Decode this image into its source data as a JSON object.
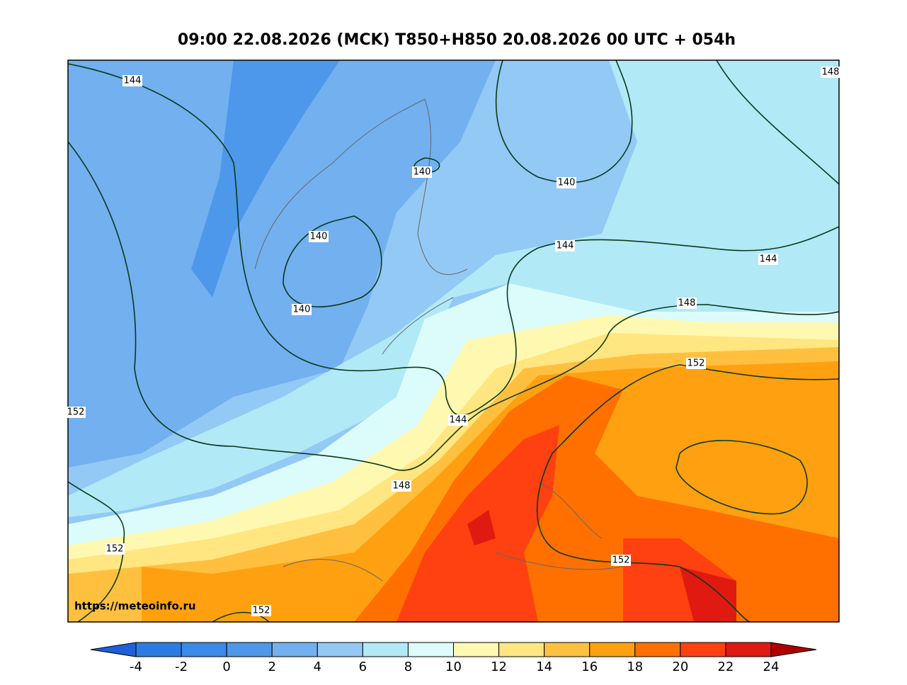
{
  "title": "09:00 22.08.2026 (MCK) T850+H850 20.08.2026 00 UTC + 054h",
  "watermark": "https://meteoinfo.ru",
  "contour_labels": [
    "144",
    "148",
    "140",
    "140",
    "140",
    "140",
    "144",
    "144",
    "148",
    "152",
    "144",
    "148",
    "152",
    "152",
    "152",
    "152"
  ],
  "colorbar": {
    "ticks": [
      -4,
      -2,
      0,
      2,
      4,
      6,
      8,
      10,
      12,
      14,
      16,
      18,
      20,
      22,
      24
    ],
    "colors": [
      "#1f5fd8",
      "#2c7be5",
      "#3a8ae8",
      "#4d98ea",
      "#72b0f0",
      "#93c9f5",
      "#b1e9f7",
      "#dcfcfc",
      "#fff8b0",
      "#ffe680",
      "#ffc040",
      "#ffa010",
      "#ff7000",
      "#ff4010",
      "#e01a10",
      "#b00000"
    ]
  }
}
